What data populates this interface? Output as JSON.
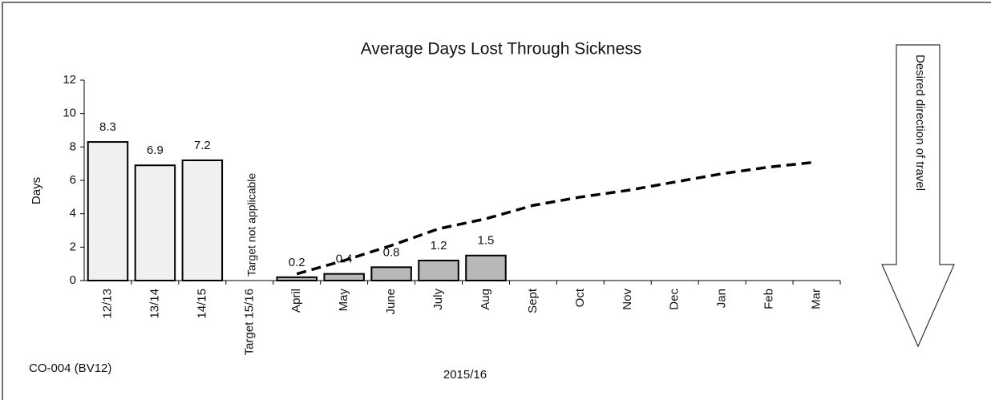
{
  "chart_data": {
    "type": "bar",
    "title": "Average Days Lost Through Sickness",
    "y_label": "Days",
    "x_label": "2015/16",
    "annotations": [
      "Target not applicable",
      "CO-004 (BV12)",
      "Desired direction of travel"
    ],
    "categories": [
      "12/13",
      "13/14",
      "14/15",
      "Target 15/16",
      "April",
      "May",
      "June",
      "July",
      "Aug",
      "Sept",
      "Oct",
      "Nov",
      "Dec",
      "Jan",
      "Feb",
      "Mar"
    ],
    "series": [
      {
        "type": "bar",
        "values": [
          8.3,
          6.9,
          7.2,
          null,
          0.2,
          0.4,
          0.8,
          1.2,
          1.5,
          null,
          null,
          null,
          null,
          null,
          null,
          null
        ],
        "colors": [
          "#f0f0f0",
          "#f0f0f0",
          "#f0f0f0",
          null,
          "#b8b8b8",
          "#b8b8b8",
          "#b8b8b8",
          "#b8b8b8",
          "#b8b8b8",
          null,
          null,
          null,
          null,
          null,
          null,
          null
        ]
      },
      {
        "type": "line",
        "color": "#000000",
        "dashed": true,
        "values": [
          null,
          null,
          null,
          null,
          0.4,
          1.2,
          2.1,
          3.1,
          3.7,
          4.5,
          5.0,
          5.4,
          5.9,
          6.4,
          6.8,
          7.1
        ]
      }
    ],
    "ylim": [
      0,
      12
    ],
    "yticks": [
      0,
      2,
      4,
      6,
      8,
      10,
      12
    ],
    "grid": false
  }
}
